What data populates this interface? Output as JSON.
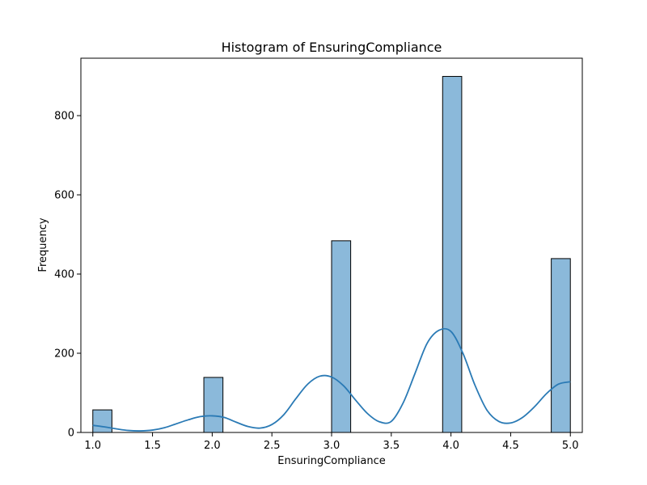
{
  "chart_data": {
    "type": "bar",
    "title": "Histogram of EnsuringCompliance",
    "xlabel": "EnsuringCompliance",
    "ylabel": "Frequency",
    "xlim": [
      0.9,
      5.1
    ],
    "ylim": [
      0,
      945
    ],
    "x_ticks": [
      "1.0",
      "1.5",
      "2.0",
      "2.5",
      "3.0",
      "3.5",
      "4.0",
      "4.5",
      "5.0"
    ],
    "x_tick_values": [
      1.0,
      1.5,
      2.0,
      2.5,
      3.0,
      3.5,
      4.0,
      4.5,
      5.0
    ],
    "y_ticks": [
      "0",
      "200",
      "400",
      "600",
      "800"
    ],
    "y_tick_values": [
      0,
      200,
      400,
      600,
      800
    ],
    "bins": [
      {
        "x0": 1.0,
        "x1": 1.16,
        "count": 57
      },
      {
        "x0": 1.93,
        "x1": 2.09,
        "count": 139
      },
      {
        "x0": 3.0,
        "x1": 3.16,
        "count": 484
      },
      {
        "x0": 3.93,
        "x1": 4.09,
        "count": 899
      },
      {
        "x0": 4.84,
        "x1": 5.0,
        "count": 439
      }
    ],
    "kde": {
      "x": [
        1.0,
        1.1,
        1.2,
        1.3,
        1.4,
        1.5,
        1.6,
        1.7,
        1.8,
        1.9,
        2.0,
        2.1,
        2.2,
        2.3,
        2.4,
        2.5,
        2.6,
        2.7,
        2.8,
        2.9,
        3.0,
        3.1,
        3.2,
        3.3,
        3.4,
        3.5,
        3.6,
        3.7,
        3.8,
        3.9,
        4.0,
        4.1,
        4.2,
        4.3,
        4.4,
        4.5,
        4.6,
        4.7,
        4.8,
        4.9,
        5.0
      ],
      "y": [
        18,
        14,
        9,
        5,
        4,
        6,
        12,
        22,
        32,
        40,
        42,
        38,
        26,
        15,
        11,
        20,
        45,
        85,
        122,
        142,
        140,
        118,
        82,
        48,
        27,
        28,
        75,
        150,
        225,
        258,
        255,
        200,
        120,
        57,
        28,
        24,
        38,
        65,
        98,
        122,
        128
      ]
    },
    "bar_color": "#8bb9da",
    "bar_edge_color": "#000000",
    "line_color": "#2a7ab5",
    "grid": false,
    "legend": "none"
  }
}
